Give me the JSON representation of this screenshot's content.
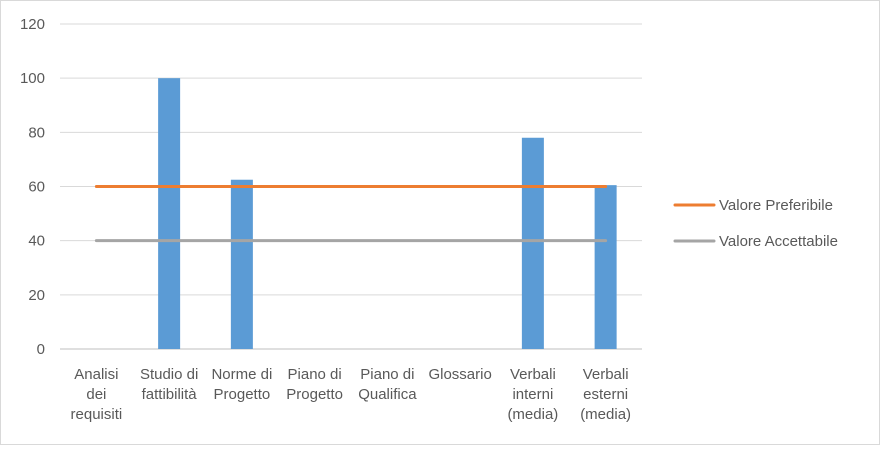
{
  "chart_data": {
    "type": "bar",
    "categories": [
      [
        "Analisi",
        "dei",
        "requisiti"
      ],
      [
        "Studio di",
        "fattibilità"
      ],
      [
        "Norme di",
        "Progetto"
      ],
      [
        "Piano di",
        "Progetto"
      ],
      [
        "Piano di",
        "Qualifica"
      ],
      [
        "Glossario"
      ],
      [
        "Verbali",
        "interni",
        "(media)"
      ],
      [
        "Verbali",
        "esterni",
        "(media)"
      ]
    ],
    "values": [
      0,
      100,
      62.5,
      0,
      0,
      0,
      78,
      60.5
    ],
    "bar_color": "#5b9bd5",
    "reference_lines": [
      {
        "name": "Valore Preferibile",
        "value": 60,
        "color": "#ed7d31"
      },
      {
        "name": "Valore Accettabile",
        "value": 40,
        "color": "#a5a5a5"
      }
    ],
    "ylim": [
      0,
      120
    ],
    "yticks": [
      0,
      20,
      40,
      60,
      80,
      100,
      120
    ],
    "grid": true,
    "legend": "right"
  }
}
